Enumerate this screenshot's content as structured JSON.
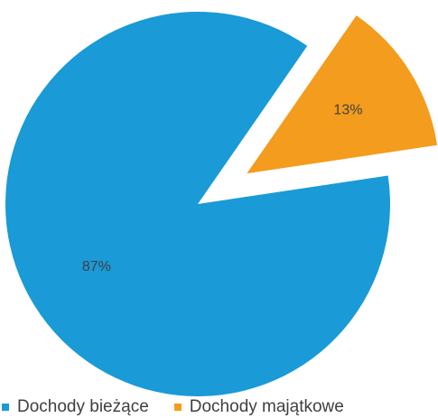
{
  "chart_data": {
    "type": "pie",
    "slices": [
      {
        "name": "Dochody bieżące",
        "value": 87,
        "label": "87%",
        "color": "#1a9ad6"
      },
      {
        "name": "Dochody majątkowe",
        "value": 13,
        "label": "13%",
        "color": "#f39c1d",
        "exploded": true
      }
    ],
    "legend": {
      "position": "bottom",
      "items": [
        "Dochody bieżące",
        "Dochody majątkowe"
      ]
    }
  }
}
